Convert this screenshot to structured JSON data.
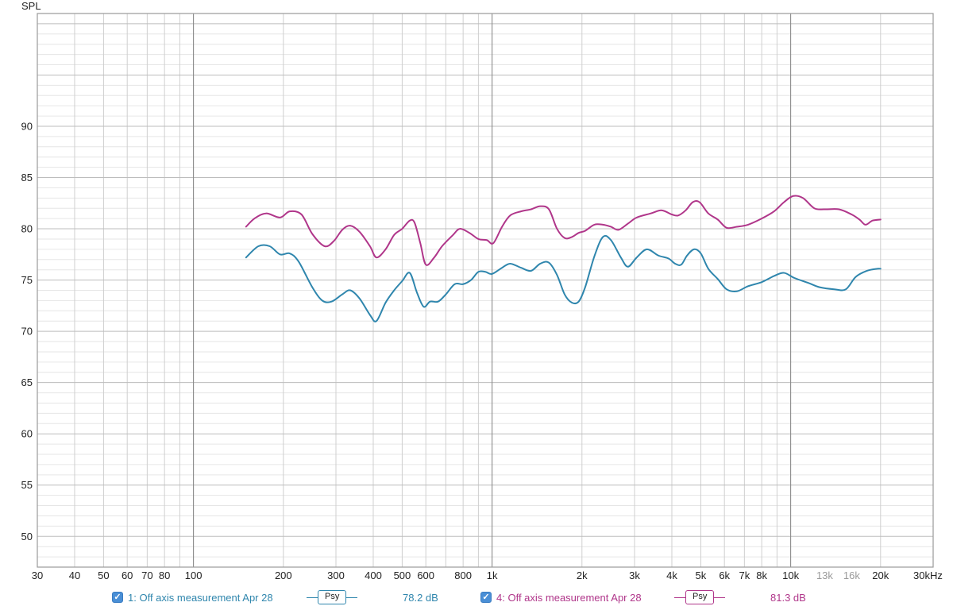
{
  "chart_data": {
    "type": "line",
    "x_scale": "log",
    "xlim": [
      30,
      30000
    ],
    "ylim": [
      47,
      101
    ],
    "y_axis_title": "SPL",
    "x_unit_label": "30kHz",
    "y_ticks": [
      {
        "value": 90,
        "label": "90"
      },
      {
        "value": 85,
        "label": "85"
      },
      {
        "value": 80,
        "label": "80"
      },
      {
        "value": 75,
        "label": "75"
      },
      {
        "value": 70,
        "label": "70"
      },
      {
        "value": 65,
        "label": "65"
      },
      {
        "value": 60,
        "label": "60"
      },
      {
        "value": 55,
        "label": "55"
      },
      {
        "value": 50,
        "label": "50"
      }
    ],
    "x_ticks": [
      {
        "value": 30,
        "label": "30"
      },
      {
        "value": 40,
        "label": "40"
      },
      {
        "value": 50,
        "label": "50"
      },
      {
        "value": 60,
        "label": "60"
      },
      {
        "value": 70,
        "label": "70"
      },
      {
        "value": 80,
        "label": "80"
      },
      {
        "value": 100,
        "label": "100"
      },
      {
        "value": 200,
        "label": "200"
      },
      {
        "value": 300,
        "label": "300"
      },
      {
        "value": 400,
        "label": "400"
      },
      {
        "value": 500,
        "label": "500"
      },
      {
        "value": 600,
        "label": "600"
      },
      {
        "value": 800,
        "label": "800"
      },
      {
        "value": 1000,
        "label": "1k"
      },
      {
        "value": 2000,
        "label": "2k"
      },
      {
        "value": 3000,
        "label": "3k"
      },
      {
        "value": 4000,
        "label": "4k"
      },
      {
        "value": 5000,
        "label": "5k"
      },
      {
        "value": 6000,
        "label": "6k"
      },
      {
        "value": 7000,
        "label": "7k"
      },
      {
        "value": 8000,
        "label": "8k"
      },
      {
        "value": 10000,
        "label": "10k"
      },
      {
        "value": 13000,
        "label": "13k",
        "faded": true
      },
      {
        "value": 16000,
        "label": "16k",
        "faded": true
      },
      {
        "value": 20000,
        "label": "20k"
      }
    ],
    "series": [
      {
        "name": "1: Off axis measurement Apr 28",
        "color": "#2f86ad",
        "points": [
          [
            150,
            77.2
          ],
          [
            165,
            78.3
          ],
          [
            180,
            78.3
          ],
          [
            195,
            77.5
          ],
          [
            210,
            77.6
          ],
          [
            225,
            76.8
          ],
          [
            250,
            74.3
          ],
          [
            270,
            73.0
          ],
          [
            290,
            72.9
          ],
          [
            315,
            73.6
          ],
          [
            335,
            74.0
          ],
          [
            360,
            73.2
          ],
          [
            390,
            71.6
          ],
          [
            410,
            71.0
          ],
          [
            440,
            72.8
          ],
          [
            470,
            74.0
          ],
          [
            500,
            74.9
          ],
          [
            530,
            75.7
          ],
          [
            560,
            73.8
          ],
          [
            590,
            72.4
          ],
          [
            620,
            72.9
          ],
          [
            660,
            72.9
          ],
          [
            700,
            73.6
          ],
          [
            750,
            74.6
          ],
          [
            800,
            74.6
          ],
          [
            850,
            75.0
          ],
          [
            900,
            75.8
          ],
          [
            950,
            75.8
          ],
          [
            1000,
            75.6
          ],
          [
            1080,
            76.2
          ],
          [
            1150,
            76.6
          ],
          [
            1250,
            76.2
          ],
          [
            1350,
            75.9
          ],
          [
            1450,
            76.6
          ],
          [
            1550,
            76.7
          ],
          [
            1650,
            75.5
          ],
          [
            1750,
            73.6
          ],
          [
            1850,
            72.8
          ],
          [
            1950,
            72.9
          ],
          [
            2050,
            74.3
          ],
          [
            2200,
            77.3
          ],
          [
            2350,
            79.2
          ],
          [
            2500,
            78.9
          ],
          [
            2700,
            77.2
          ],
          [
            2850,
            76.3
          ],
          [
            3050,
            77.2
          ],
          [
            3300,
            78.0
          ],
          [
            3600,
            77.4
          ],
          [
            3900,
            77.1
          ],
          [
            4100,
            76.6
          ],
          [
            4300,
            76.5
          ],
          [
            4500,
            77.4
          ],
          [
            4750,
            78.0
          ],
          [
            5000,
            77.6
          ],
          [
            5300,
            76.1
          ],
          [
            5700,
            75.1
          ],
          [
            6100,
            74.1
          ],
          [
            6600,
            73.9
          ],
          [
            7200,
            74.4
          ],
          [
            8000,
            74.8
          ],
          [
            8800,
            75.4
          ],
          [
            9500,
            75.7
          ],
          [
            10300,
            75.2
          ],
          [
            11500,
            74.7
          ],
          [
            12500,
            74.3
          ],
          [
            14000,
            74.1
          ],
          [
            15300,
            74.1
          ],
          [
            16500,
            75.3
          ],
          [
            18000,
            75.9
          ],
          [
            19500,
            76.1
          ],
          [
            20000,
            76.1
          ]
        ]
      },
      {
        "name": "4: Off axis measurement Apr 28",
        "color": "#b0368a",
        "points": [
          [
            150,
            80.2
          ],
          [
            160,
            81.0
          ],
          [
            175,
            81.5
          ],
          [
            195,
            81.1
          ],
          [
            210,
            81.7
          ],
          [
            230,
            81.4
          ],
          [
            250,
            79.5
          ],
          [
            275,
            78.3
          ],
          [
            295,
            78.8
          ],
          [
            315,
            79.9
          ],
          [
            335,
            80.3
          ],
          [
            360,
            79.7
          ],
          [
            390,
            78.3
          ],
          [
            410,
            77.2
          ],
          [
            440,
            78.0
          ],
          [
            470,
            79.4
          ],
          [
            500,
            80.0
          ],
          [
            530,
            80.8
          ],
          [
            550,
            80.6
          ],
          [
            575,
            78.6
          ],
          [
            600,
            76.5
          ],
          [
            640,
            77.2
          ],
          [
            680,
            78.3
          ],
          [
            740,
            79.4
          ],
          [
            780,
            80.0
          ],
          [
            840,
            79.6
          ],
          [
            900,
            79.0
          ],
          [
            960,
            78.9
          ],
          [
            1010,
            78.6
          ],
          [
            1080,
            80.2
          ],
          [
            1150,
            81.3
          ],
          [
            1250,
            81.7
          ],
          [
            1350,
            81.9
          ],
          [
            1450,
            82.2
          ],
          [
            1550,
            81.9
          ],
          [
            1650,
            80.0
          ],
          [
            1750,
            79.1
          ],
          [
            1850,
            79.2
          ],
          [
            1950,
            79.6
          ],
          [
            2050,
            79.8
          ],
          [
            2200,
            80.4
          ],
          [
            2350,
            80.4
          ],
          [
            2500,
            80.2
          ],
          [
            2650,
            79.9
          ],
          [
            2850,
            80.5
          ],
          [
            3050,
            81.1
          ],
          [
            3400,
            81.5
          ],
          [
            3700,
            81.8
          ],
          [
            4000,
            81.4
          ],
          [
            4200,
            81.3
          ],
          [
            4450,
            81.8
          ],
          [
            4700,
            82.6
          ],
          [
            4950,
            82.6
          ],
          [
            5300,
            81.5
          ],
          [
            5700,
            80.9
          ],
          [
            6100,
            80.1
          ],
          [
            6600,
            80.2
          ],
          [
            7200,
            80.4
          ],
          [
            8000,
            81.0
          ],
          [
            8800,
            81.7
          ],
          [
            9500,
            82.6
          ],
          [
            10200,
            83.2
          ],
          [
            11000,
            83.0
          ],
          [
            12000,
            82.0
          ],
          [
            13000,
            81.9
          ],
          [
            14500,
            81.9
          ],
          [
            16000,
            81.4
          ],
          [
            17000,
            80.9
          ],
          [
            17800,
            80.4
          ],
          [
            18800,
            80.8
          ],
          [
            20000,
            80.9
          ]
        ]
      }
    ]
  },
  "legend": [
    {
      "checked": true,
      "name": "1: Off axis measurement Apr 28",
      "smoothing": "Psy",
      "value": "78.2 dB",
      "color": "#2f86ad"
    },
    {
      "checked": true,
      "name": "4: Off axis measurement Apr 28",
      "smoothing": "Psy",
      "value": "81.3 dB",
      "color": "#b0368a"
    }
  ]
}
